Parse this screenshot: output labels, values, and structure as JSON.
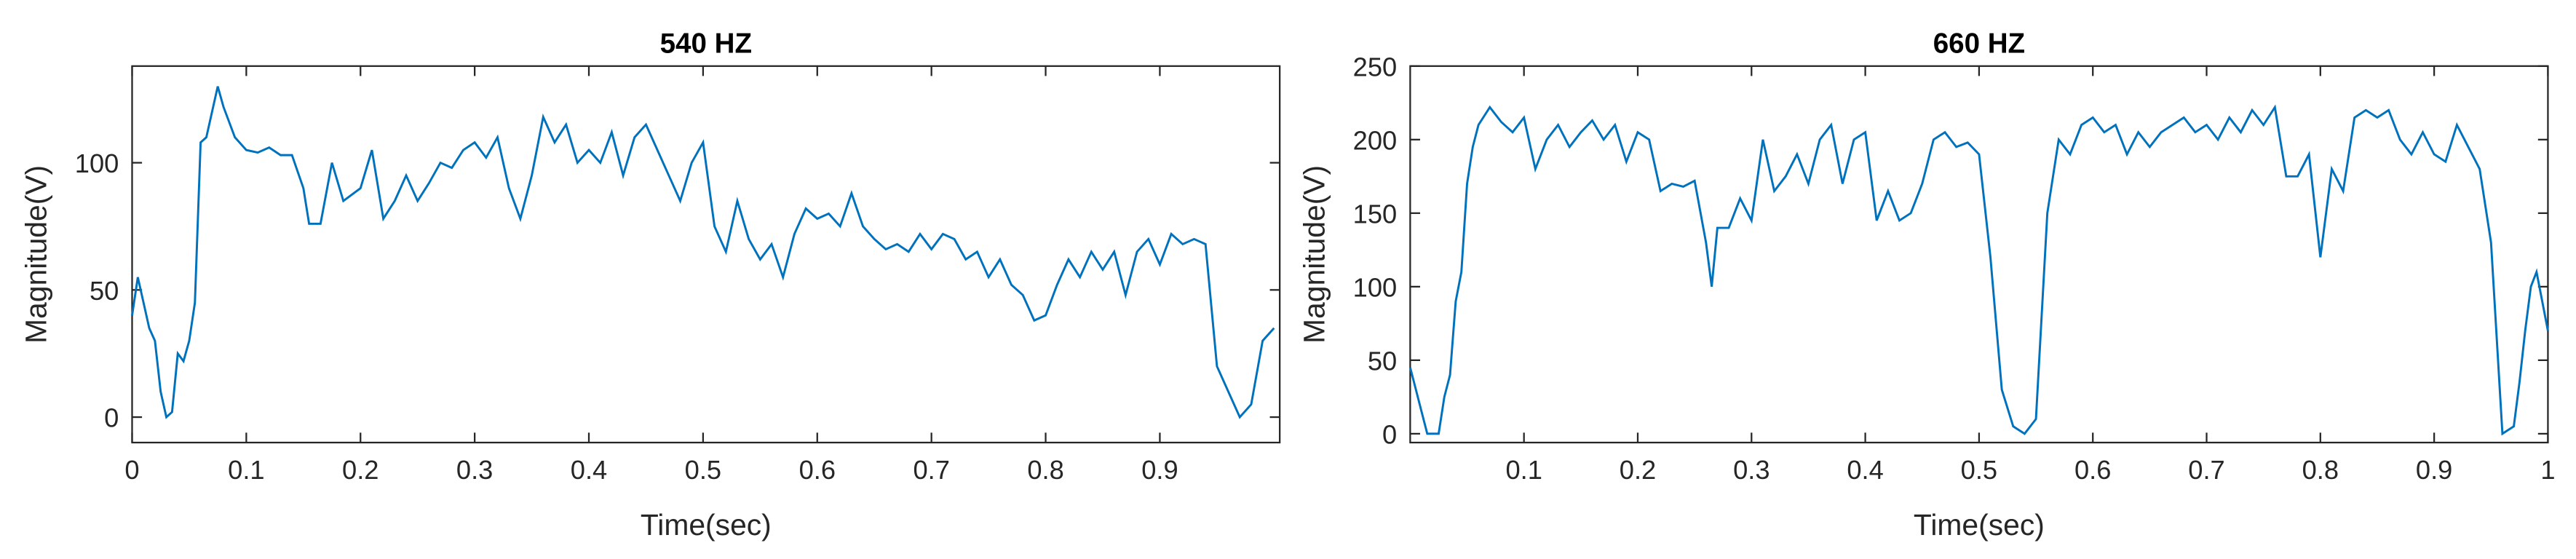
{
  "chart_data": [
    {
      "type": "line",
      "title": "540 HZ",
      "x_label": "Time(sec)",
      "y_label": "Magnitude(V)",
      "x": [
        0,
        0.005,
        0.01,
        0.015,
        0.02,
        0.025,
        0.03,
        0.035,
        0.04,
        0.045,
        0.05,
        0.055,
        0.06,
        0.065,
        0.07,
        0.075,
        0.08,
        0.09,
        0.1,
        0.11,
        0.12,
        0.13,
        0.14,
        0.15,
        0.155,
        0.165,
        0.175,
        0.185,
        0.2,
        0.21,
        0.22,
        0.23,
        0.24,
        0.25,
        0.26,
        0.27,
        0.28,
        0.29,
        0.3,
        0.31,
        0.32,
        0.33,
        0.34,
        0.35,
        0.36,
        0.37,
        0.38,
        0.39,
        0.4,
        0.41,
        0.42,
        0.43,
        0.44,
        0.45,
        0.46,
        0.47,
        0.48,
        0.49,
        0.5,
        0.51,
        0.52,
        0.53,
        0.54,
        0.55,
        0.56,
        0.57,
        0.58,
        0.59,
        0.6,
        0.61,
        0.62,
        0.63,
        0.64,
        0.65,
        0.66,
        0.67,
        0.68,
        0.69,
        0.7,
        0.71,
        0.72,
        0.73,
        0.74,
        0.75,
        0.76,
        0.77,
        0.78,
        0.79,
        0.8,
        0.81,
        0.82,
        0.83,
        0.84,
        0.85,
        0.86,
        0.87,
        0.88,
        0.89,
        0.9,
        0.91,
        0.92,
        0.93,
        0.94,
        0.95,
        0.96,
        0.97,
        0.98,
        0.99,
        1.0
      ],
      "series": [
        {
          "name": "540 Hz",
          "color": "#0072bd",
          "values": [
            40,
            55,
            45,
            35,
            30,
            10,
            0,
            2,
            25,
            22,
            30,
            45,
            108,
            110,
            120,
            130,
            122,
            110,
            105,
            104,
            106,
            103,
            103,
            90,
            76,
            76,
            100,
            85,
            90,
            105,
            78,
            85,
            95,
            85,
            92,
            100,
            98,
            105,
            108,
            102,
            110,
            90,
            78,
            95,
            118,
            108,
            115,
            100,
            105,
            100,
            112,
            95,
            110,
            115,
            105,
            95,
            85,
            100,
            108,
            75,
            65,
            85,
            70,
            62,
            68,
            55,
            72,
            82,
            78,
            80,
            75,
            88,
            75,
            70,
            66,
            68,
            65,
            72,
            66,
            72,
            70,
            62,
            65,
            55,
            62,
            52,
            48,
            38,
            40,
            52,
            62,
            55,
            65,
            58,
            65,
            48,
            65,
            70,
            60,
            72,
            68,
            70,
            68,
            20,
            10,
            0,
            5,
            30,
            35
          ]
        }
      ],
      "xlim": [
        0,
        1.005
      ],
      "xticks": [
        0,
        0.1,
        0.2,
        0.3,
        0.4,
        0.5,
        0.6,
        0.7,
        0.8,
        0.9
      ],
      "ylim": [
        -10,
        138
      ],
      "yticks": [
        0,
        50,
        100
      ]
    },
    {
      "type": "line",
      "title": "660 HZ",
      "x_label": "Time(sec)",
      "y_label": "Magnitude(V)",
      "x": [
        0,
        0.005,
        0.01,
        0.015,
        0.02,
        0.025,
        0.03,
        0.035,
        0.04,
        0.045,
        0.05,
        0.055,
        0.06,
        0.07,
        0.08,
        0.09,
        0.1,
        0.11,
        0.12,
        0.13,
        0.14,
        0.15,
        0.16,
        0.17,
        0.18,
        0.19,
        0.2,
        0.21,
        0.22,
        0.23,
        0.24,
        0.25,
        0.26,
        0.265,
        0.27,
        0.28,
        0.29,
        0.3,
        0.31,
        0.32,
        0.33,
        0.34,
        0.35,
        0.36,
        0.37,
        0.38,
        0.39,
        0.4,
        0.41,
        0.42,
        0.43,
        0.44,
        0.45,
        0.46,
        0.47,
        0.48,
        0.49,
        0.5,
        0.51,
        0.52,
        0.53,
        0.54,
        0.55,
        0.56,
        0.57,
        0.58,
        0.59,
        0.6,
        0.61,
        0.62,
        0.63,
        0.64,
        0.65,
        0.66,
        0.67,
        0.68,
        0.69,
        0.7,
        0.71,
        0.72,
        0.73,
        0.74,
        0.75,
        0.76,
        0.77,
        0.78,
        0.79,
        0.8,
        0.81,
        0.82,
        0.83,
        0.84,
        0.85,
        0.86,
        0.87,
        0.88,
        0.89,
        0.9,
        0.91,
        0.92,
        0.93,
        0.94,
        0.95,
        0.96,
        0.97,
        0.975,
        0.98,
        0.985,
        0.99,
        1.0
      ],
      "series": [
        {
          "name": "660 Hz",
          "color": "#0072bd",
          "values": [
            45,
            30,
            15,
            0,
            0,
            0,
            25,
            40,
            90,
            110,
            170,
            195,
            210,
            222,
            212,
            205,
            215,
            180,
            200,
            210,
            195,
            205,
            213,
            200,
            210,
            185,
            205,
            200,
            165,
            170,
            168,
            172,
            130,
            100,
            140,
            140,
            160,
            145,
            200,
            165,
            175,
            190,
            170,
            200,
            210,
            170,
            200,
            205,
            145,
            165,
            145,
            150,
            170,
            200,
            205,
            195,
            198,
            190,
            120,
            30,
            5,
            0,
            10,
            150,
            200,
            190,
            210,
            215,
            205,
            210,
            190,
            205,
            195,
            205,
            210,
            215,
            205,
            210,
            200,
            215,
            205,
            220,
            210,
            222,
            175,
            175,
            190,
            120,
            180,
            165,
            215,
            220,
            215,
            220,
            200,
            190,
            205,
            190,
            185,
            210,
            195,
            180,
            130,
            0,
            5,
            35,
            70,
            100,
            110,
            70
          ]
        }
      ],
      "xlim": [
        0,
        1.0
      ],
      "xticks": [
        0.1,
        0.2,
        0.3,
        0.4,
        0.5,
        0.6,
        0.7,
        0.8,
        0.9,
        1
      ],
      "ylim": [
        -6,
        250
      ],
      "yticks": [
        0,
        50,
        100,
        150,
        200,
        250
      ]
    }
  ]
}
